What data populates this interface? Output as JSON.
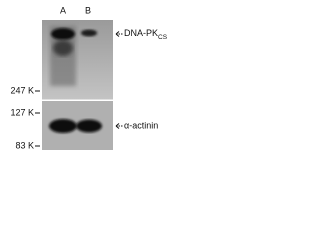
{
  "lanes": [
    "A",
    "B"
  ],
  "top_panel": {
    "label": "DNA-PK",
    "label_subscript": "CS"
  },
  "bottom_panel": {
    "label": "α-actinin"
  },
  "markers": [
    "247 K",
    "127 K",
    "83 K"
  ]
}
